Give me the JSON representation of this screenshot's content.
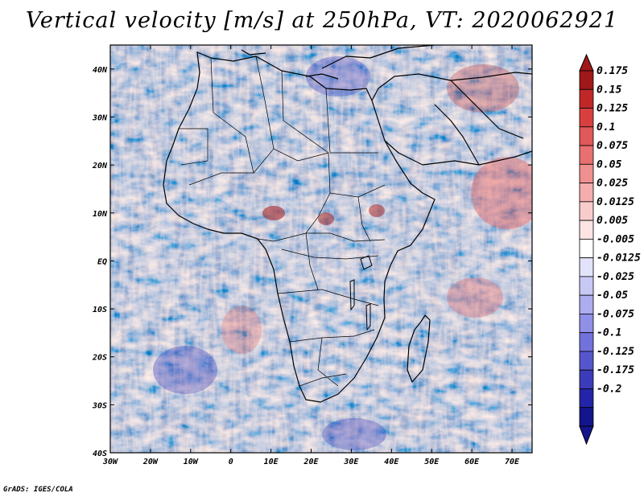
{
  "title": "Vertical velocity [m/s] at 250hPa, VT: 2020062921",
  "footer": "GrADS: IGES/COLA",
  "map": {
    "variable": "Vertical velocity",
    "units": "m/s",
    "level": "250hPa",
    "valid_time": "2020062921",
    "lon_range": [
      -30,
      75
    ],
    "lat_range": [
      -40,
      45
    ],
    "x_ticks": [
      "30W",
      "20W",
      "10W",
      "0",
      "10E",
      "20E",
      "30E",
      "40E",
      "50E",
      "60E",
      "70E"
    ],
    "y_ticks": [
      "40N",
      "30N",
      "20N",
      "10N",
      "EQ",
      "10S",
      "20S",
      "30S",
      "40S"
    ]
  },
  "colorbar": {
    "levels": [
      "0.175",
      "0.15",
      "0.125",
      "0.1",
      "0.075",
      "0.05",
      "0.025",
      "0.0125",
      "0.005",
      "-0.005",
      "-0.0125",
      "-0.025",
      "-0.05",
      "-0.075",
      "-0.1",
      "-0.125",
      "-0.175",
      "-0.2"
    ],
    "colors": [
      "#a01818",
      "#c02828",
      "#d84040",
      "#e05858",
      "#e87070",
      "#ef9090",
      "#f4adad",
      "#f9cccc",
      "#fce4e4",
      "#ffffff",
      "#e2e2fa",
      "#c8c8f4",
      "#acacee",
      "#9090e8",
      "#7272dc",
      "#5656cc",
      "#3c3cba",
      "#2424a8",
      "#14148c"
    ],
    "arrow_top": "#a01818",
    "arrow_bottom": "#14148c"
  }
}
